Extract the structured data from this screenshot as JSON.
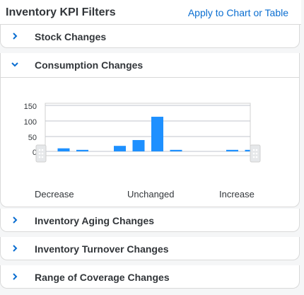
{
  "header": {
    "title": "Inventory KPI Filters",
    "apply_label": "Apply to Chart or Table"
  },
  "panels": [
    {
      "label": "Stock Changes",
      "expanded": false
    },
    {
      "label": "Consumption Changes",
      "expanded": true
    },
    {
      "label": "Inventory Aging Changes",
      "expanded": false
    },
    {
      "label": "Inventory Turnover Changes",
      "expanded": false
    },
    {
      "label": "Range of Coverage Changes",
      "expanded": false
    }
  ],
  "chart_data": {
    "type": "bar",
    "y_ticks": [
      "150",
      "100",
      "50",
      "0"
    ],
    "ylim": [
      0,
      150
    ],
    "values": [
      10,
      5,
      0,
      18,
      37,
      113,
      5,
      0,
      0,
      5,
      5
    ],
    "bar_color": "#1e90ff",
    "category_labels": [
      "Decrease",
      "Unchanged",
      "Increase"
    ]
  },
  "colors": {
    "accent": "#0a6ed1",
    "bar": "#1e90ff"
  }
}
